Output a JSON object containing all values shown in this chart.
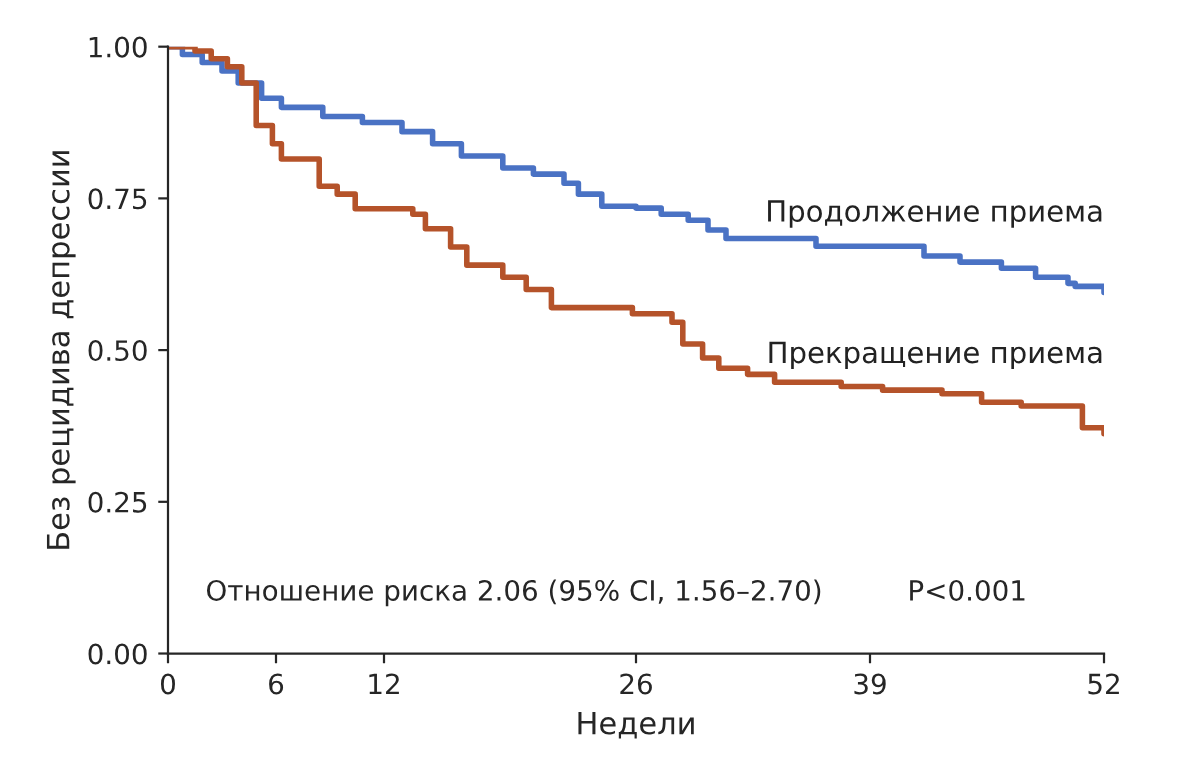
{
  "chart_data": {
    "type": "step",
    "xlabel": "Недели",
    "ylabel": "Без рецидива депрессии",
    "xlim": [
      0,
      52
    ],
    "xticks": [
      0,
      6,
      12,
      26,
      39,
      52
    ],
    "ylim": [
      0,
      1
    ],
    "yticks": [
      {
        "value": 0,
        "label": "0.00"
      },
      {
        "value": 0.25,
        "label": "0.25"
      },
      {
        "value": 0.5,
        "label": "0.50"
      },
      {
        "value": 0.75,
        "label": "0.75"
      },
      {
        "value": 1,
        "label": "1.00"
      }
    ],
    "grid": false,
    "legend": false,
    "marker": "none",
    "line_style": "solid",
    "series": [
      {
        "name": "Продолжение приема",
        "color": "#4a72c4",
        "x": [
          0,
          0.8,
          1.9,
          3.0,
          3.9,
          5.2,
          6.3,
          8.6,
          10.8,
          13.0,
          14.7,
          16.3,
          18.6,
          20.3,
          22.0,
          22.8,
          24.1,
          26.0,
          27.4,
          28.9,
          30.0,
          31.0,
          36.0,
          42.0,
          44.0,
          46.3,
          48.2,
          50.0,
          50.4,
          52
        ],
        "values": [
          1.0,
          0.987,
          0.974,
          0.96,
          0.94,
          0.915,
          0.9,
          0.885,
          0.875,
          0.86,
          0.84,
          0.82,
          0.8,
          0.79,
          0.775,
          0.757,
          0.737,
          0.734,
          0.724,
          0.714,
          0.698,
          0.684,
          0.671,
          0.655,
          0.645,
          0.635,
          0.62,
          0.61,
          0.605,
          0.595
        ]
      },
      {
        "name": "Прекращение приема",
        "color": "#b5532a",
        "x": [
          0,
          1.5,
          2.4,
          3.3,
          4.1,
          4.9,
          5.8,
          6.3,
          8.4,
          9.4,
          10.4,
          13.6,
          14.3,
          15.7,
          16.6,
          18.6,
          19.9,
          21.3,
          25.8,
          28.0,
          28.6,
          29.7,
          30.6,
          32.2,
          33.7,
          37.4,
          39.7,
          43.0,
          45.2,
          47.4,
          50.8,
          52
        ],
        "values": [
          1.0,
          0.993,
          0.98,
          0.967,
          0.94,
          0.87,
          0.84,
          0.815,
          0.77,
          0.757,
          0.733,
          0.724,
          0.7,
          0.67,
          0.64,
          0.62,
          0.6,
          0.57,
          0.56,
          0.546,
          0.51,
          0.487,
          0.47,
          0.46,
          0.447,
          0.44,
          0.434,
          0.428,
          0.414,
          0.408,
          0.372,
          0.362
        ]
      }
    ],
    "annotations": [
      "Отношение риска 2.06 (95% CI, 1.56–2.70)",
      "P<0.001"
    ]
  }
}
